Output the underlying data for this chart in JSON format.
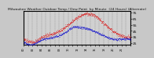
{
  "title": "Milwaukee Weather Outdoor Temp / Dew Point  by Minute  (24 Hours) (Alternate)",
  "title_fontsize": 3.2,
  "bg_color": "#c8c8c8",
  "plot_bg": "#d0d0d0",
  "grid_color": "#888888",
  "temp_color": "#dd0000",
  "dew_color": "#0000cc",
  "ylim": [
    22,
    78
  ],
  "yticks": [
    25,
    35,
    45,
    55,
    65,
    75
  ],
  "ylabel_fontsize": 3.2,
  "xlabel_fontsize": 2.5
}
